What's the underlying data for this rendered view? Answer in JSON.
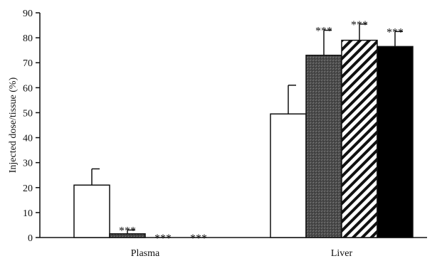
{
  "chart_data": {
    "type": "bar",
    "categories": [
      "Plasma",
      "Liver"
    ],
    "ylabel": "Injected dose/tissue (%)",
    "ylim": [
      0,
      90
    ],
    "yticks": [
      0,
      10,
      20,
      30,
      40,
      50,
      60,
      70,
      80,
      90
    ],
    "grid": false,
    "legend": "none",
    "series": [
      {
        "fill": "white",
        "color": "#ffffff",
        "values": [
          21,
          49.5
        ],
        "errors": [
          6.5,
          11.5
        ],
        "significance": [
          "",
          ""
        ]
      },
      {
        "fill": "stipple",
        "color": "#3a3a3a",
        "values": [
          1.5,
          73
        ],
        "errors": [
          1.5,
          10
        ],
        "significance": [
          "***",
          "***"
        ]
      },
      {
        "fill": "hatched",
        "color": "#111111",
        "values": [
          0,
          79
        ],
        "errors": [
          0,
          6.5
        ],
        "significance": [
          "***",
          "***"
        ]
      },
      {
        "fill": "black",
        "color": "#000000",
        "values": [
          0,
          76.5
        ],
        "errors": [
          0,
          6
        ],
        "significance": [
          "***",
          "***"
        ]
      }
    ]
  }
}
